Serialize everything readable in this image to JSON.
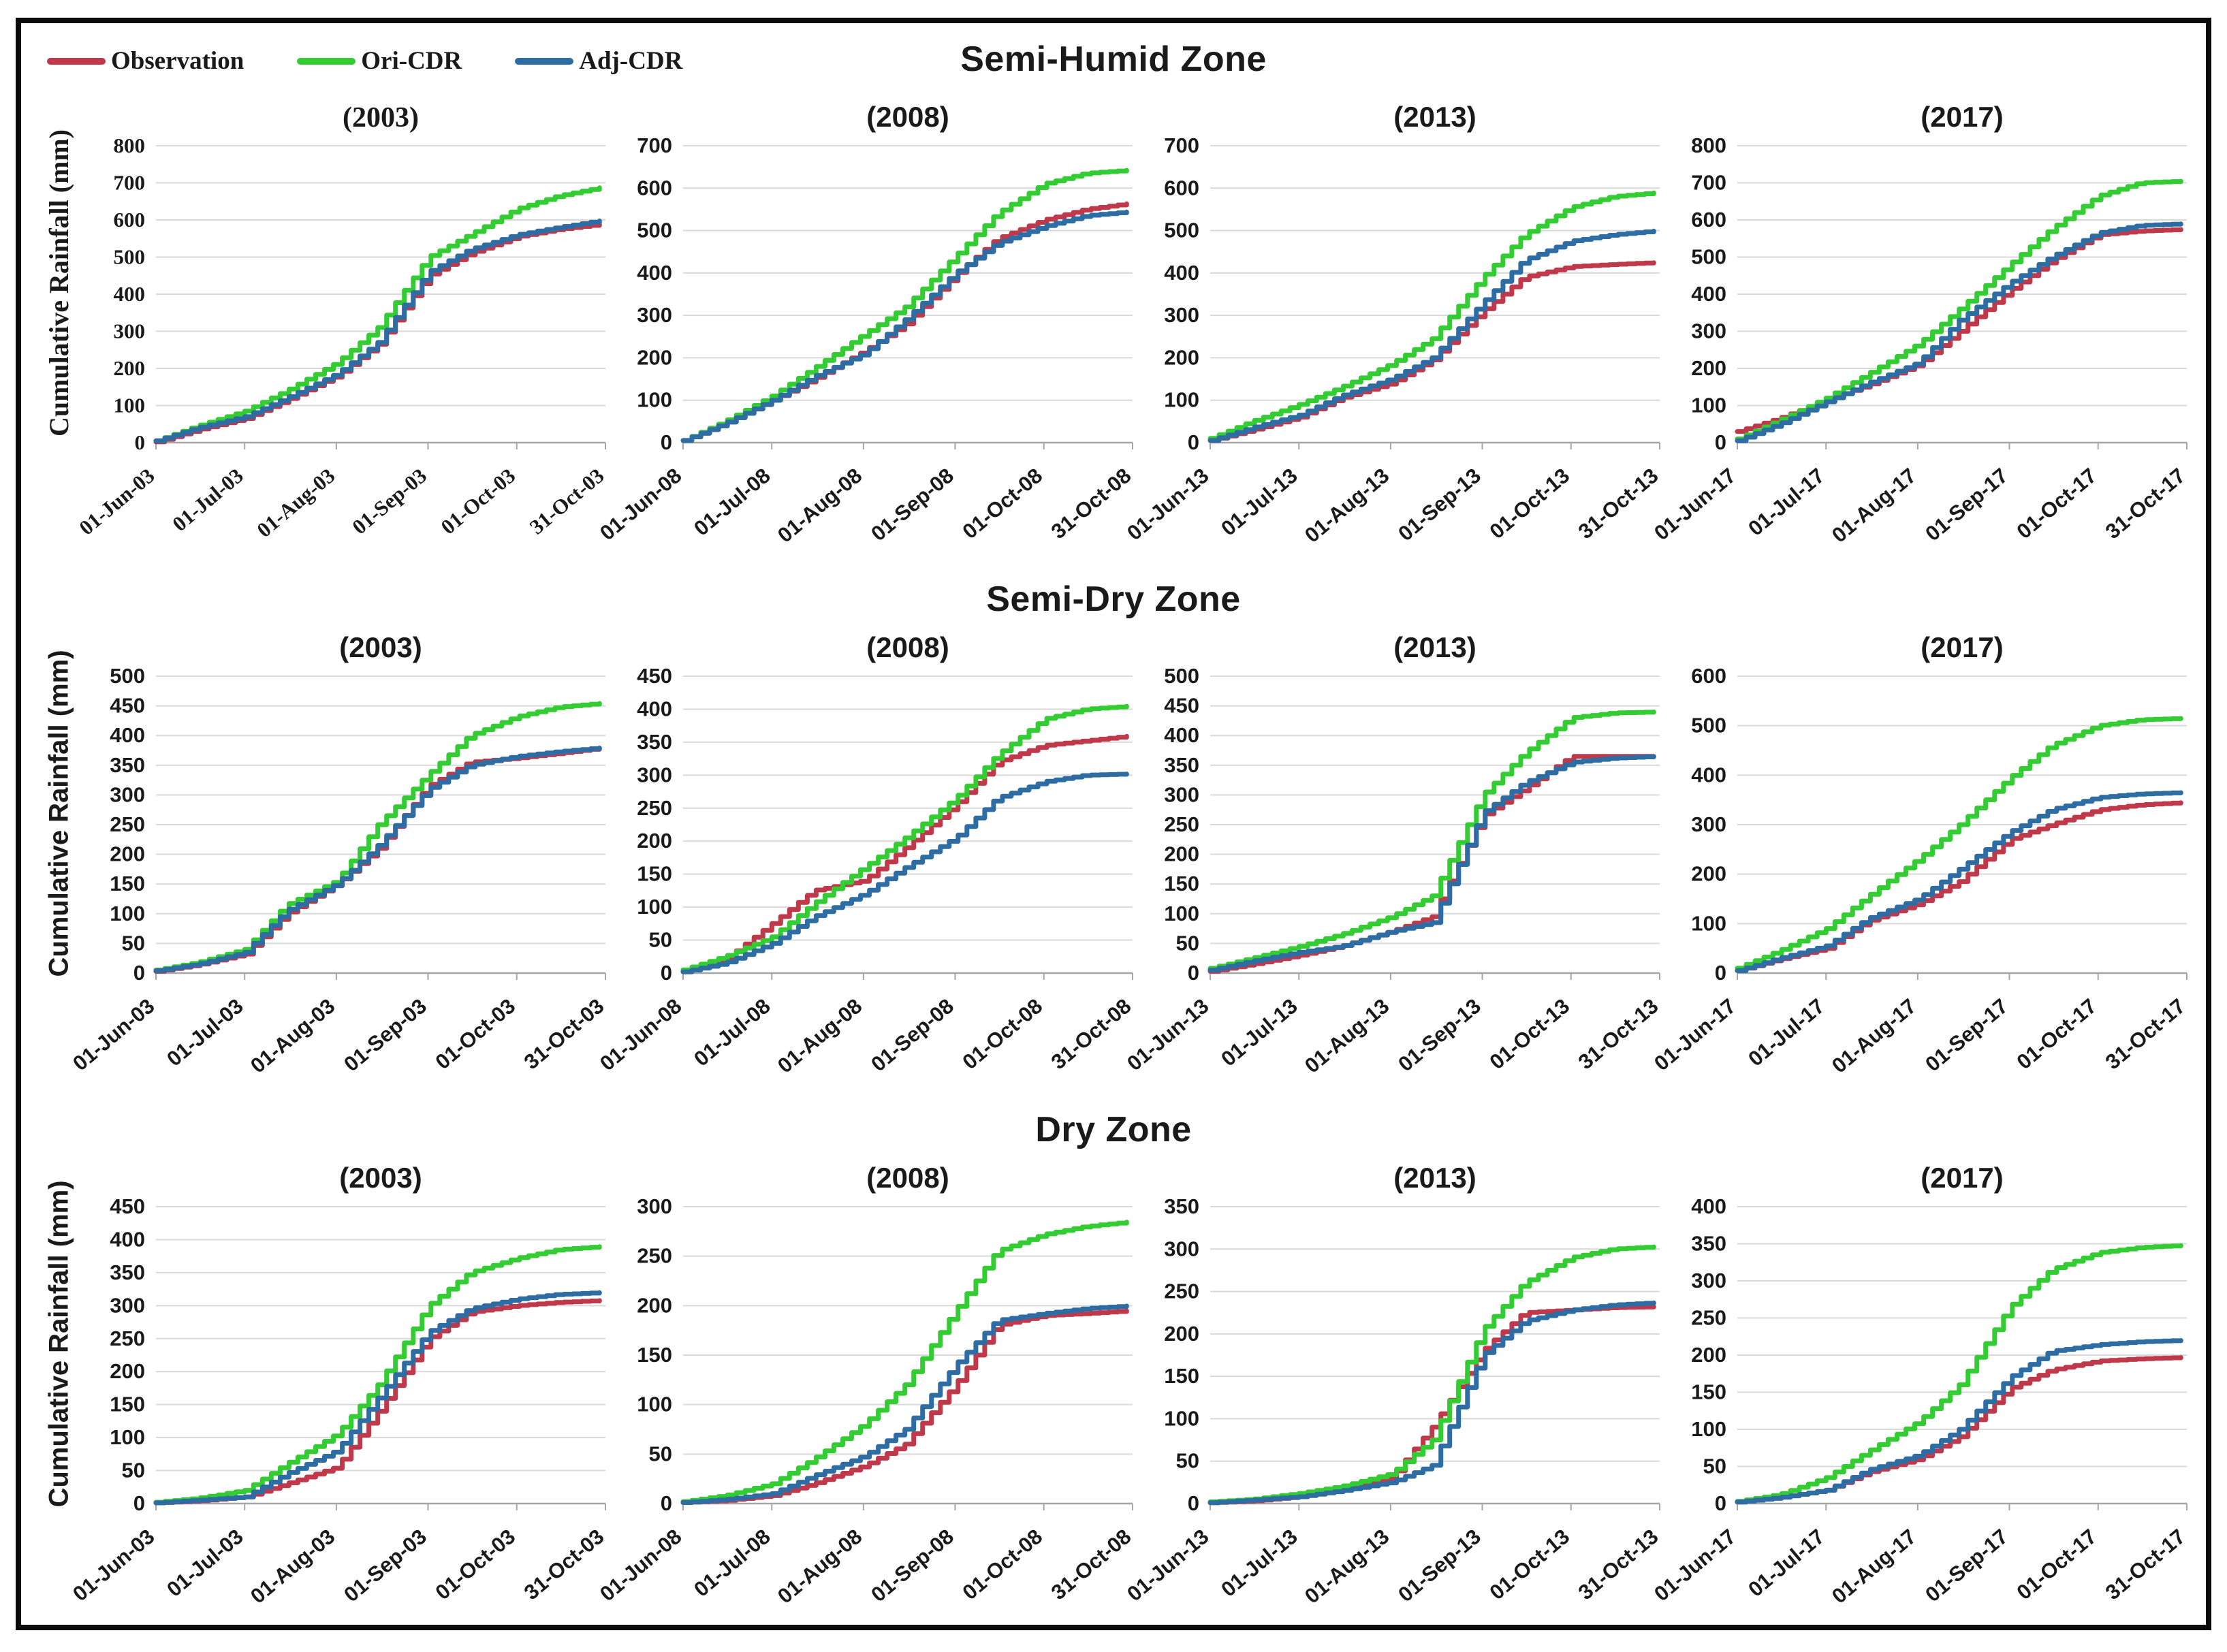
{
  "figure": {
    "ylabel": "Cumulative Rainfall (mm)",
    "legend": [
      {
        "label": "Observation",
        "color": "#c0394b"
      },
      {
        "label": "Ori-CDR",
        "color": "#33cc33"
      },
      {
        "label": "Adj-CDR",
        "color": "#2e6da4"
      }
    ],
    "grid_color": "#d9d9d9",
    "axis_color": "#a6a6a6",
    "text_color": "#1a1a1a"
  },
  "chart_data": [
    {
      "type": "line",
      "zone": "Semi-Humid Zone",
      "panels": [
        {
          "title": "(2003)",
          "serif": true,
          "ylim": [
            0,
            800
          ],
          "ystep": 100,
          "x_days": [
            0,
            14,
            30,
            44,
            61,
            75,
            92,
            106,
            122,
            136,
            152
          ],
          "x_ticks": [
            "01-Jun-03",
            "01-Jul-03",
            "01-Aug-03",
            "01-Sep-03",
            "01-Oct-03",
            "31-Oct-03"
          ],
          "series": [
            {
              "name": "Observation",
              "values": [
                2,
                35,
                65,
                115,
                180,
                265,
                450,
                510,
                555,
                575,
                590
              ]
            },
            {
              "name": "Ori-CDR",
              "values": [
                5,
                45,
                85,
                140,
                215,
                310,
                500,
                560,
                630,
                665,
                690
              ]
            },
            {
              "name": "Adj-CDR",
              "values": [
                5,
                40,
                70,
                120,
                185,
                270,
                460,
                520,
                560,
                580,
                600
              ]
            }
          ]
        },
        {
          "title": "(2008)",
          "serif": false,
          "ylim": [
            0,
            700
          ],
          "ystep": 100,
          "x_days": [
            0,
            14,
            30,
            44,
            61,
            75,
            92,
            106,
            122,
            136,
            152
          ],
          "x_ticks": [
            "01-Jun-08",
            "01-Jul-08",
            "01-Aug-08",
            "01-Sep-08",
            "01-Oct-08",
            "31-Oct-08"
          ],
          "series": [
            {
              "name": "Observation",
              "values": [
                5,
                45,
                100,
                150,
                215,
                280,
                395,
                480,
                525,
                550,
                565
              ]
            },
            {
              "name": "Ori-CDR",
              "values": [
                5,
                50,
                110,
                175,
                255,
                320,
                440,
                540,
                610,
                635,
                643
              ]
            },
            {
              "name": "Adj-CDR",
              "values": [
                5,
                45,
                100,
                155,
                210,
                290,
                400,
                470,
                510,
                535,
                545
              ]
            }
          ]
        },
        {
          "title": "(2013)",
          "serif": false,
          "ylim": [
            0,
            700
          ],
          "ystep": 100,
          "x_days": [
            0,
            14,
            30,
            44,
            61,
            75,
            92,
            106,
            122,
            136,
            152
          ],
          "x_ticks": [
            "01-Jun-13",
            "01-Jul-13",
            "01-Aug-13",
            "01-Sep-13",
            "01-Oct-13",
            "31-Oct-13"
          ],
          "series": [
            {
              "name": "Observation",
              "values": [
                5,
                30,
                60,
                105,
                140,
                195,
                310,
                390,
                415,
                420,
                425
              ]
            },
            {
              "name": "Ori-CDR",
              "values": [
                10,
                50,
                90,
                130,
                185,
                245,
                390,
                490,
                555,
                580,
                590
              ]
            },
            {
              "name": "Adj-CDR",
              "values": [
                5,
                35,
                65,
                110,
                150,
                200,
                330,
                430,
                475,
                490,
                500
              ]
            }
          ]
        },
        {
          "title": "(2017)",
          "serif": false,
          "ylim": [
            0,
            800
          ],
          "ystep": 100,
          "x_days": [
            0,
            14,
            30,
            44,
            61,
            75,
            92,
            106,
            122,
            136,
            152
          ],
          "x_ticks": [
            "01-Jun-17",
            "01-Jul-17",
            "01-Aug-17",
            "01-Sep-17",
            "01-Oct-17",
            "31-Oct-17"
          ],
          "series": [
            {
              "name": "Observation",
              "values": [
                30,
                65,
                115,
                155,
                210,
                300,
                410,
                490,
                560,
                570,
                575
              ]
            },
            {
              "name": "Ori-CDR",
              "values": [
                10,
                60,
                120,
                185,
                265,
                360,
                480,
                575,
                665,
                700,
                705
              ]
            },
            {
              "name": "Adj-CDR",
              "values": [
                5,
                50,
                110,
                160,
                215,
                330,
                430,
                500,
                565,
                585,
                590
              ]
            }
          ]
        }
      ]
    },
    {
      "type": "line",
      "zone": "Semi-Dry Zone",
      "panels": [
        {
          "title": "(2003)",
          "serif": false,
          "ylim": [
            0,
            500
          ],
          "ystep": 50,
          "x_days": [
            0,
            14,
            30,
            44,
            61,
            75,
            92,
            106,
            122,
            136,
            152
          ],
          "x_ticks": [
            "01-Jun-03",
            "01-Jul-03",
            "01-Aug-03",
            "01-Sep-03",
            "01-Oct-03",
            "31-Oct-03"
          ],
          "series": [
            {
              "name": "Observation",
              "values": [
                3,
                14,
                32,
                100,
                150,
                210,
                315,
                355,
                362,
                370,
                380
              ]
            },
            {
              "name": "Ori-CDR",
              "values": [
                5,
                18,
                40,
                115,
                155,
                250,
                335,
                400,
                432,
                448,
                455
              ]
            },
            {
              "name": "Adj-CDR",
              "values": [
                4,
                15,
                35,
                105,
                150,
                215,
                310,
                350,
                365,
                373,
                380
              ]
            }
          ]
        },
        {
          "title": "(2008)",
          "serif": false,
          "ylim": [
            0,
            450
          ],
          "ystep": 50,
          "x_days": [
            0,
            14,
            30,
            44,
            61,
            75,
            92,
            106,
            122,
            136,
            152
          ],
          "x_ticks": [
            "01-Jun-08",
            "01-Jul-08",
            "01-Aug-08",
            "01-Sep-08",
            "01-Oct-08",
            "31-Oct-08"
          ],
          "series": [
            {
              "name": "Observation",
              "values": [
                2,
                20,
                75,
                125,
                140,
                190,
                255,
                320,
                345,
                352,
                360
              ]
            },
            {
              "name": "Ori-CDR",
              "values": [
                5,
                25,
                55,
                105,
                160,
                205,
                265,
                330,
                385,
                400,
                405
              ]
            },
            {
              "name": "Adj-CDR",
              "values": [
                2,
                15,
                45,
                85,
                120,
                160,
                205,
                265,
                290,
                300,
                302
              ]
            }
          ]
        },
        {
          "title": "(2013)",
          "serif": false,
          "ylim": [
            0,
            500
          ],
          "ystep": 50,
          "x_days": [
            0,
            14,
            30,
            44,
            61,
            75,
            92,
            106,
            122,
            136,
            152
          ],
          "x_ticks": [
            "01-Jun-13",
            "01-Jul-13",
            "01-Aug-13",
            "01-Sep-13",
            "01-Oct-13",
            "31-Oct-13"
          ],
          "series": [
            {
              "name": "Observation",
              "values": [
                3,
                15,
                30,
                45,
                70,
                95,
                265,
                310,
                365,
                365,
                365
              ]
            },
            {
              "name": "Ori-CDR",
              "values": [
                8,
                25,
                45,
                65,
                95,
                130,
                300,
                370,
                430,
                438,
                440
              ]
            },
            {
              "name": "Adj-CDR",
              "values": [
                5,
                20,
                35,
                45,
                70,
                85,
                270,
                320,
                355,
                362,
                365
              ]
            }
          ]
        },
        {
          "title": "(2017)",
          "serif": false,
          "ylim": [
            0,
            600
          ],
          "ystep": 100,
          "x_days": [
            0,
            14,
            30,
            44,
            61,
            75,
            92,
            106,
            122,
            136,
            152
          ],
          "x_ticks": [
            "01-Jun-17",
            "01-Jul-17",
            "01-Aug-17",
            "01-Sep-17",
            "01-Oct-17",
            "31-Oct-17"
          ],
          "series": [
            {
              "name": "Observation",
              "values": [
                5,
                28,
                50,
                105,
                140,
                185,
                270,
                300,
                330,
                340,
                345
              ]
            },
            {
              "name": "Ori-CDR",
              "values": [
                10,
                45,
                90,
                155,
                230,
                300,
                395,
                460,
                500,
                512,
                515
              ]
            },
            {
              "name": "Adj-CDR",
              "values": [
                5,
                30,
                55,
                110,
                150,
                210,
                285,
                330,
                355,
                362,
                365
              ]
            }
          ]
        }
      ]
    },
    {
      "type": "line",
      "zone": "Dry Zone",
      "panels": [
        {
          "title": "(2003)",
          "serif": false,
          "ylim": [
            0,
            450
          ],
          "ystep": 50,
          "x_days": [
            0,
            14,
            30,
            44,
            61,
            75,
            92,
            106,
            122,
            136,
            152
          ],
          "x_ticks": [
            "01-Jun-03",
            "01-Jul-03",
            "01-Aug-03",
            "01-Sep-03",
            "01-Oct-03",
            "31-Oct-03"
          ],
          "series": [
            {
              "name": "Observation",
              "values": [
                1,
                4,
                10,
                30,
                55,
                140,
                250,
                290,
                300,
                305,
                308
              ]
            },
            {
              "name": "Ori-CDR",
              "values": [
                2,
                8,
                20,
                60,
                105,
                180,
                300,
                350,
                372,
                385,
                390
              ]
            },
            {
              "name": "Adj-CDR",
              "values": [
                1,
                5,
                10,
                45,
                80,
                160,
                260,
                295,
                310,
                317,
                320
              ]
            }
          ]
        },
        {
          "title": "(2008)",
          "serif": false,
          "ylim": [
            0,
            300
          ],
          "ystep": 50,
          "x_days": [
            0,
            14,
            30,
            44,
            61,
            75,
            92,
            106,
            122,
            136,
            152
          ],
          "x_ticks": [
            "01-Jun-08",
            "01-Jul-08",
            "01-Aug-08",
            "01-Sep-08",
            "01-Oct-08",
            "31-Oct-08"
          ],
          "series": [
            {
              "name": "Observation",
              "values": [
                1,
                3,
                8,
                20,
                38,
                60,
                120,
                180,
                190,
                192,
                195
              ]
            },
            {
              "name": "Ori-CDR",
              "values": [
                2,
                8,
                20,
                45,
                80,
                120,
                195,
                255,
                272,
                280,
                285
              ]
            },
            {
              "name": "Adj-CDR",
              "values": [
                1,
                4,
                10,
                28,
                48,
                75,
                140,
                185,
                192,
                197,
                200
              ]
            }
          ]
        },
        {
          "title": "(2013)",
          "serif": false,
          "ylim": [
            0,
            350
          ],
          "ystep": 50,
          "x_days": [
            0,
            14,
            30,
            44,
            61,
            75,
            92,
            106,
            122,
            136,
            152
          ],
          "x_ticks": [
            "01-Jun-13",
            "01-Jul-13",
            "01-Aug-13",
            "01-Sep-13",
            "01-Oct-13",
            "31-Oct-13"
          ],
          "series": [
            {
              "name": "Observation",
              "values": [
                1,
                3,
                8,
                16,
                30,
                90,
                180,
                225,
                228,
                231,
                232
              ]
            },
            {
              "name": "Ori-CDR",
              "values": [
                2,
                5,
                12,
                20,
                35,
                75,
                205,
                260,
                290,
                300,
                303
              ]
            },
            {
              "name": "Adj-CDR",
              "values": [
                1,
                4,
                8,
                15,
                25,
                45,
                175,
                215,
                228,
                234,
                237
              ]
            }
          ]
        },
        {
          "title": "(2017)",
          "serif": false,
          "ylim": [
            0,
            400
          ],
          "ystep": 50,
          "x_days": [
            0,
            14,
            30,
            44,
            61,
            75,
            92,
            106,
            122,
            136,
            152
          ],
          "x_ticks": [
            "01-Jun-17",
            "01-Jul-17",
            "01-Aug-17",
            "01-Sep-17",
            "01-Oct-17",
            "31-Oct-17"
          ],
          "series": [
            {
              "name": "Observation",
              "values": [
                2,
                8,
                18,
                42,
                60,
                90,
                155,
                180,
                192,
                195,
                197
              ]
            },
            {
              "name": "Ori-CDR",
              "values": [
                3,
                12,
                35,
                70,
                110,
                160,
                265,
                315,
                338,
                345,
                348
              ]
            },
            {
              "name": "Adj-CDR",
              "values": [
                2,
                8,
                18,
                45,
                65,
                100,
                170,
                205,
                214,
                218,
                220
              ]
            }
          ]
        }
      ]
    }
  ]
}
